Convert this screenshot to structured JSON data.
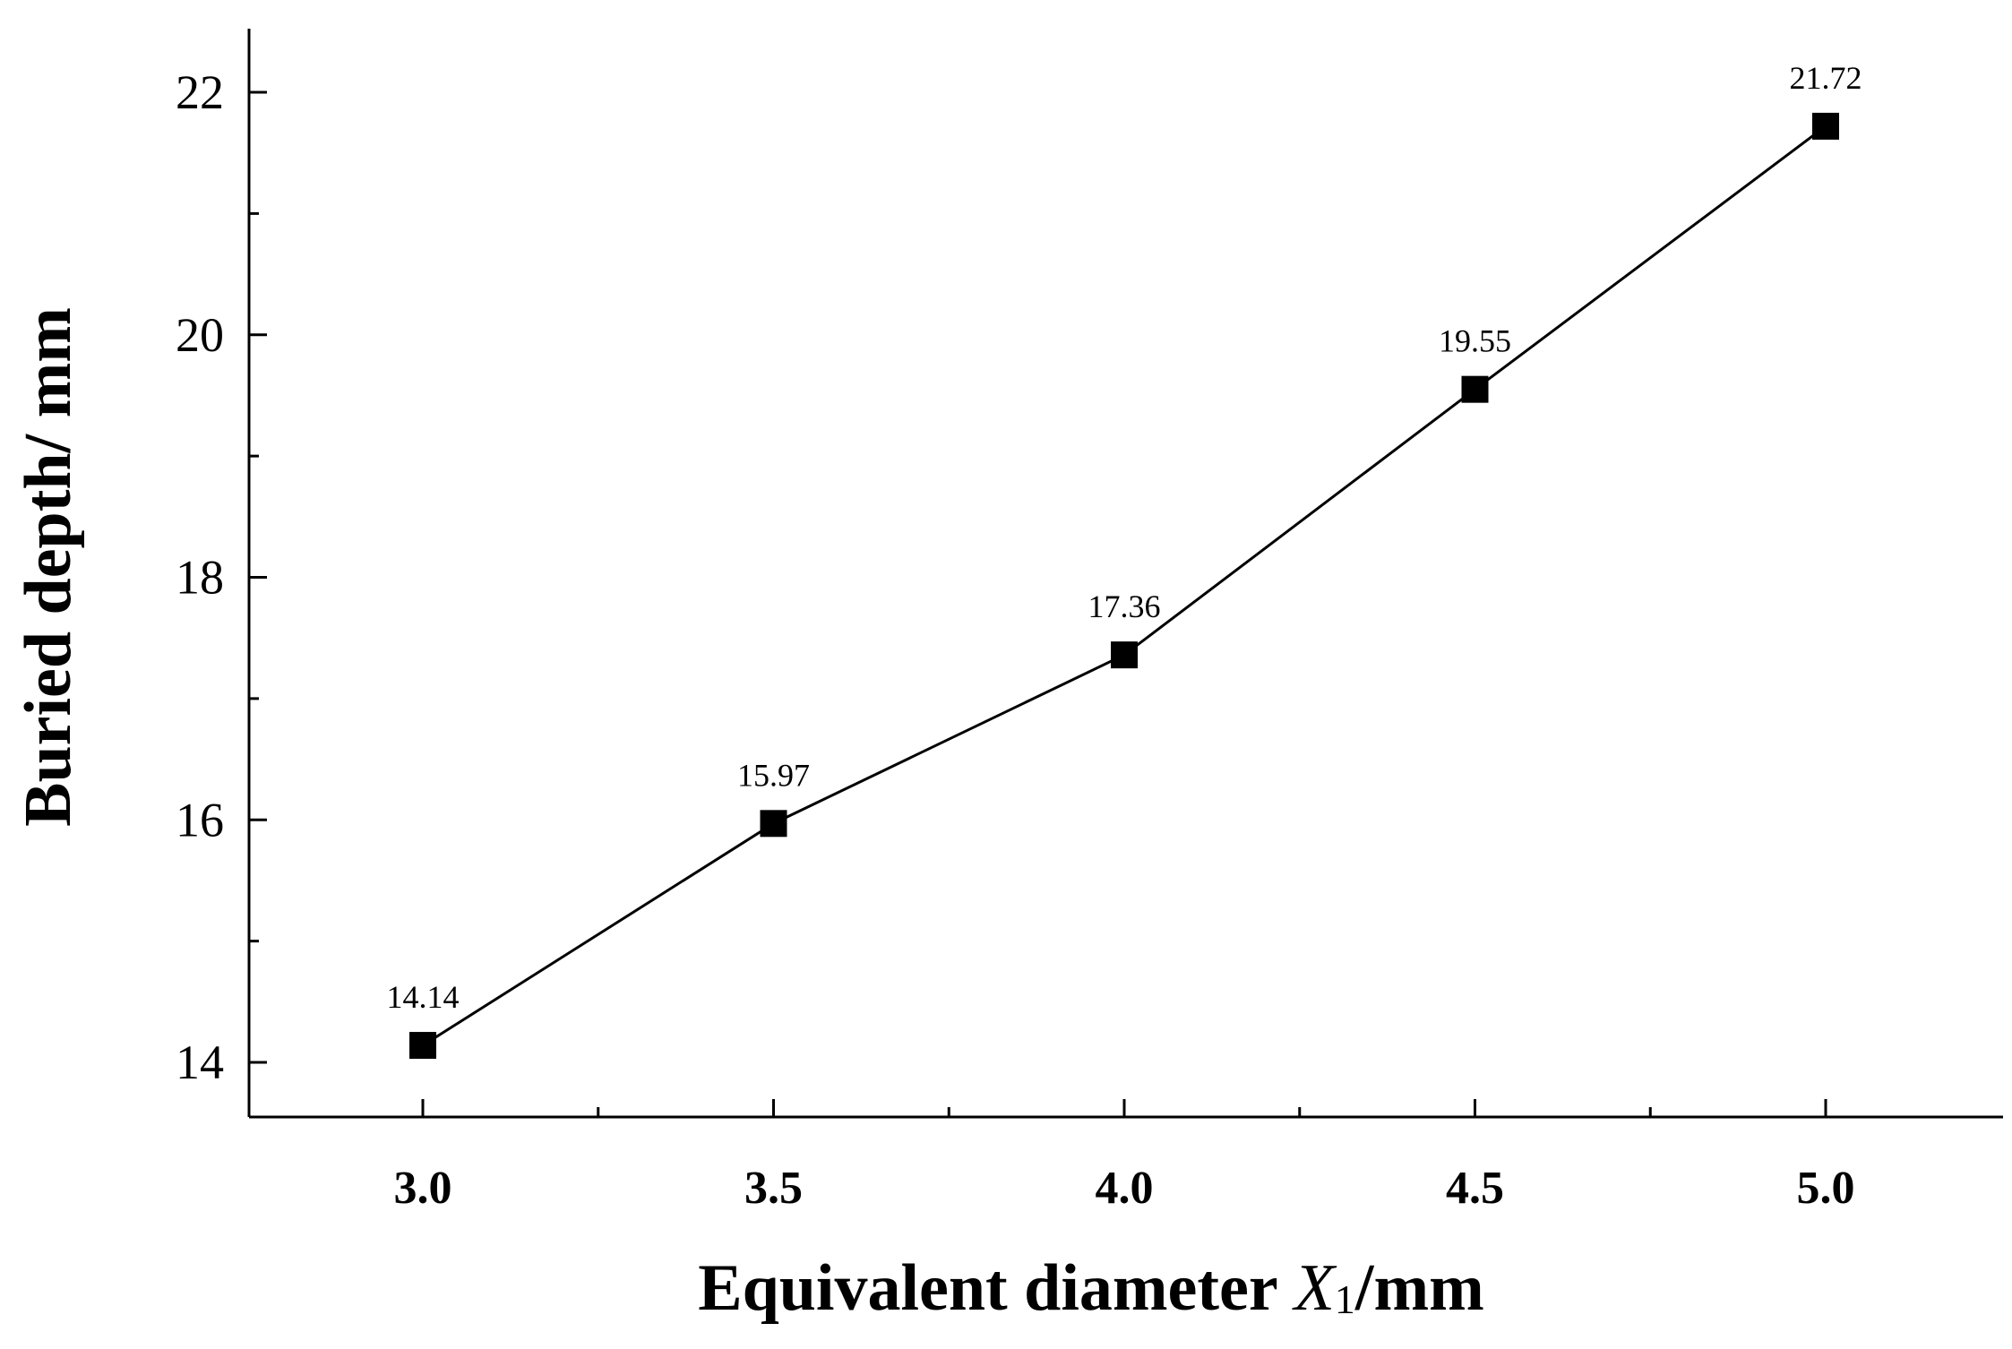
{
  "chart_data": {
    "type": "line",
    "xlabel": "Equivalent diameter",
    "xlabel_var": "X",
    "xlabel_sub": "1",
    "xlabel_unit": "/mm",
    "ylabel": "Buried depth/ mm",
    "x": [
      3.0,
      3.5,
      4.0,
      4.5,
      5.0
    ],
    "x_tick_labels": [
      "3.0",
      "3.5",
      "4.0",
      "4.5",
      "5.0"
    ],
    "series": [
      {
        "values": [
          14.14,
          15.97,
          17.36,
          19.55,
          21.72
        ],
        "data_labels": [
          "14.14",
          "15.97",
          "17.36",
          "19.55",
          "21.72"
        ],
        "marker": "square",
        "color": "#000000"
      }
    ],
    "y_ticks": [
      14,
      16,
      18,
      20,
      22
    ],
    "y_tick_labels": [
      "14",
      "16",
      "18",
      "20",
      "22"
    ],
    "xlim": [
      2.75,
      5.25
    ],
    "ylim": [
      13.5,
      22.5
    ],
    "grid": false
  }
}
